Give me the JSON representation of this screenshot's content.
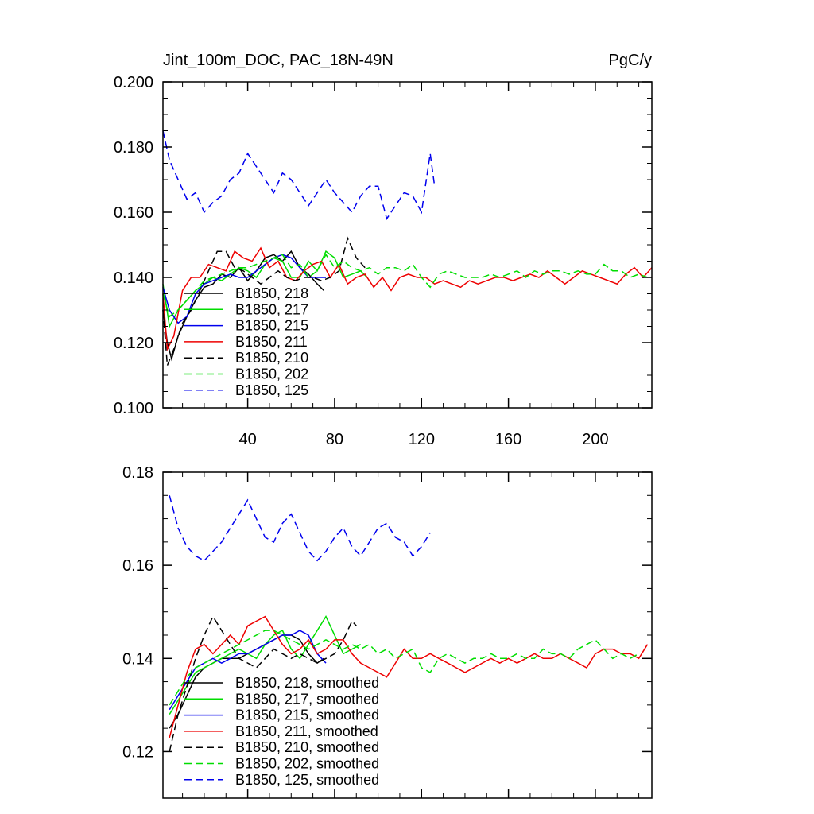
{
  "chart_data": [
    {
      "type": "line",
      "title": "Jint_100m_DOC, PAC_18N-49N",
      "units": "PgC/y",
      "xlim": [
        1,
        226
      ],
      "ylim": [
        0.1,
        0.2
      ],
      "xticks": [
        40,
        80,
        120,
        160,
        200
      ],
      "yticks": [
        0.1,
        0.12,
        0.14,
        0.16,
        0.18,
        0.2
      ],
      "xtick_labels": [
        "40",
        "80",
        "120",
        "160",
        "200"
      ],
      "ytick_labels": [
        "0.100",
        "0.120",
        "0.140",
        "0.160",
        "0.180",
        "0.200"
      ],
      "legend_position": "bottom-left",
      "series": [
        {
          "name": "B1850, 218",
          "color": "#000000",
          "dash": "solid",
          "x": [
            1,
            3,
            5,
            8,
            12,
            16,
            20,
            24,
            28,
            32,
            36,
            40,
            44,
            48,
            52,
            56,
            60,
            64,
            68,
            72,
            75
          ],
          "y": [
            0.13,
            0.12,
            0.115,
            0.122,
            0.128,
            0.133,
            0.137,
            0.138,
            0.141,
            0.14,
            0.143,
            0.139,
            0.142,
            0.146,
            0.147,
            0.145,
            0.148,
            0.143,
            0.141,
            0.138,
            0.136
          ]
        },
        {
          "name": "B1850, 217",
          "color": "#00dd00",
          "dash": "solid",
          "x": [
            1,
            4,
            8,
            12,
            16,
            20,
            24,
            28,
            32,
            36,
            40,
            44,
            48,
            52,
            56,
            60,
            64,
            68,
            72,
            76,
            80,
            84,
            88,
            92,
            95
          ],
          "y": [
            0.138,
            0.125,
            0.13,
            0.133,
            0.136,
            0.138,
            0.14,
            0.139,
            0.141,
            0.143,
            0.142,
            0.14,
            0.144,
            0.146,
            0.145,
            0.14,
            0.14,
            0.145,
            0.142,
            0.148,
            0.146,
            0.14,
            0.141,
            0.142,
            0.14
          ]
        },
        {
          "name": "B1850, 215",
          "color": "#0000ee",
          "dash": "solid",
          "x": [
            1,
            4,
            8,
            12,
            16,
            20,
            24,
            28,
            32,
            36,
            40,
            44,
            48,
            52,
            56,
            60,
            64,
            68,
            72,
            76
          ],
          "y": [
            0.137,
            0.13,
            0.126,
            0.128,
            0.135,
            0.138,
            0.139,
            0.14,
            0.141,
            0.14,
            0.14,
            0.142,
            0.144,
            0.146,
            0.147,
            0.146,
            0.143,
            0.14,
            0.14,
            0.14
          ]
        },
        {
          "name": "B1850, 211",
          "color": "#ee0000",
          "dash": "solid",
          "x": [
            1,
            3,
            6,
            10,
            14,
            18,
            22,
            26,
            30,
            34,
            38,
            42,
            46,
            50,
            54,
            58,
            62,
            66,
            70,
            74,
            78,
            82,
            86,
            90,
            94,
            98,
            102,
            106,
            110,
            114,
            118,
            122,
            126,
            130,
            134,
            138,
            142,
            146,
            150,
            154,
            158,
            162,
            166,
            170,
            174,
            178,
            182,
            186,
            190,
            194,
            198,
            202,
            206,
            210,
            214,
            218,
            222,
            226
          ],
          "y": [
            0.135,
            0.118,
            0.122,
            0.136,
            0.14,
            0.14,
            0.144,
            0.143,
            0.142,
            0.148,
            0.146,
            0.145,
            0.149,
            0.143,
            0.145,
            0.14,
            0.139,
            0.142,
            0.144,
            0.145,
            0.14,
            0.144,
            0.138,
            0.14,
            0.141,
            0.137,
            0.14,
            0.136,
            0.14,
            0.141,
            0.14,
            0.14,
            0.138,
            0.139,
            0.138,
            0.137,
            0.139,
            0.138,
            0.139,
            0.14,
            0.14,
            0.139,
            0.14,
            0.141,
            0.14,
            0.142,
            0.14,
            0.138,
            0.14,
            0.142,
            0.141,
            0.14,
            0.139,
            0.138,
            0.141,
            0.143,
            0.14,
            0.143
          ]
        },
        {
          "name": "B1850, 210",
          "color": "#000000",
          "dash": "dash",
          "x": [
            1,
            3,
            6,
            10,
            14,
            18,
            22,
            26,
            30,
            34,
            38,
            42,
            46,
            50,
            54,
            58,
            62,
            66,
            70,
            74,
            78,
            82,
            86,
            90,
            94
          ],
          "y": [
            0.13,
            0.113,
            0.118,
            0.126,
            0.13,
            0.136,
            0.142,
            0.148,
            0.148,
            0.143,
            0.142,
            0.14,
            0.138,
            0.14,
            0.142,
            0.14,
            0.139,
            0.14,
            0.14,
            0.139,
            0.14,
            0.142,
            0.152,
            0.146,
            0.143
          ]
        },
        {
          "name": "B1850, 202",
          "color": "#00dd00",
          "dash": "dash",
          "x": [
            1,
            4,
            8,
            12,
            16,
            20,
            24,
            28,
            32,
            36,
            40,
            44,
            48,
            52,
            56,
            60,
            64,
            68,
            72,
            76,
            80,
            84,
            88,
            92,
            96,
            100,
            104,
            108,
            112,
            116,
            120,
            124,
            128,
            132,
            136,
            140,
            144,
            148,
            152,
            156,
            160,
            164,
            168,
            172,
            176,
            180,
            184,
            188,
            192,
            196,
            200,
            204,
            208,
            212,
            216,
            220,
            224
          ],
          "y": [
            0.135,
            0.128,
            0.13,
            0.133,
            0.136,
            0.139,
            0.14,
            0.141,
            0.142,
            0.143,
            0.143,
            0.144,
            0.145,
            0.146,
            0.147,
            0.143,
            0.144,
            0.14,
            0.142,
            0.147,
            0.143,
            0.145,
            0.143,
            0.142,
            0.143,
            0.141,
            0.143,
            0.143,
            0.142,
            0.144,
            0.14,
            0.137,
            0.141,
            0.142,
            0.141,
            0.14,
            0.14,
            0.14,
            0.141,
            0.14,
            0.141,
            0.142,
            0.14,
            0.142,
            0.141,
            0.142,
            0.142,
            0.141,
            0.142,
            0.141,
            0.141,
            0.144,
            0.142,
            0.142,
            0.14,
            0.141,
            0.14
          ]
        },
        {
          "name": "B1850, 125",
          "color": "#0000ee",
          "dash": "dash",
          "x": [
            1,
            4,
            8,
            12,
            16,
            20,
            24,
            28,
            32,
            36,
            40,
            44,
            48,
            52,
            56,
            60,
            64,
            68,
            72,
            76,
            80,
            84,
            88,
            92,
            96,
            100,
            104,
            108,
            112,
            116,
            120,
            124,
            126
          ],
          "y": [
            0.185,
            0.176,
            0.17,
            0.164,
            0.166,
            0.16,
            0.163,
            0.165,
            0.17,
            0.172,
            0.178,
            0.174,
            0.17,
            0.166,
            0.172,
            0.17,
            0.166,
            0.162,
            0.166,
            0.17,
            0.166,
            0.163,
            0.16,
            0.165,
            0.168,
            0.168,
            0.158,
            0.162,
            0.166,
            0.165,
            0.16,
            0.178,
            0.168
          ]
        }
      ]
    },
    {
      "type": "line",
      "xlim": [
        1,
        226
      ],
      "ylim": [
        0.11,
        0.18
      ],
      "yticks": [
        0.12,
        0.14,
        0.16,
        0.18
      ],
      "ytick_labels": [
        "0.12",
        "0.14",
        "0.16",
        "0.18"
      ],
      "legend_position": "bottom-left",
      "series": [
        {
          "name": "B1850, 218, smoothed",
          "color": "#000000",
          "dash": "solid",
          "x": [
            4,
            8,
            12,
            16,
            20,
            24,
            28,
            32,
            36,
            40,
            44,
            48,
            52,
            56,
            60,
            64,
            68,
            72,
            75
          ],
          "y": [
            0.125,
            0.128,
            0.132,
            0.136,
            0.138,
            0.139,
            0.14,
            0.14,
            0.14,
            0.141,
            0.142,
            0.143,
            0.144,
            0.145,
            0.145,
            0.144,
            0.141,
            0.139,
            0.14
          ]
        },
        {
          "name": "B1850, 217, smoothed",
          "color": "#00dd00",
          "dash": "solid",
          "x": [
            4,
            8,
            12,
            16,
            20,
            24,
            28,
            32,
            36,
            40,
            44,
            48,
            52,
            56,
            60,
            64,
            68,
            72,
            76,
            80,
            84,
            88,
            92
          ],
          "y": [
            0.128,
            0.131,
            0.134,
            0.137,
            0.138,
            0.139,
            0.14,
            0.141,
            0.142,
            0.141,
            0.14,
            0.143,
            0.145,
            0.146,
            0.142,
            0.14,
            0.143,
            0.146,
            0.149,
            0.145,
            0.141,
            0.142,
            0.143
          ]
        },
        {
          "name": "B1850, 215, smoothed",
          "color": "#0000ee",
          "dash": "solid",
          "x": [
            4,
            8,
            12,
            16,
            20,
            24,
            28,
            32,
            36,
            40,
            44,
            48,
            52,
            56,
            60,
            64,
            68,
            72,
            76
          ],
          "y": [
            0.129,
            0.132,
            0.135,
            0.138,
            0.139,
            0.14,
            0.139,
            0.14,
            0.141,
            0.141,
            0.142,
            0.143,
            0.144,
            0.145,
            0.145,
            0.146,
            0.145,
            0.141,
            0.139
          ]
        },
        {
          "name": "B1850, 211, smoothed",
          "color": "#ee0000",
          "dash": "solid",
          "x": [
            4,
            8,
            12,
            16,
            20,
            24,
            28,
            32,
            36,
            40,
            44,
            48,
            52,
            56,
            60,
            64,
            68,
            72,
            76,
            80,
            84,
            88,
            92,
            96,
            100,
            104,
            108,
            112,
            116,
            120,
            124,
            128,
            132,
            136,
            140,
            144,
            148,
            152,
            156,
            160,
            164,
            168,
            172,
            176,
            180,
            184,
            188,
            192,
            196,
            200,
            204,
            208,
            212,
            216,
            220,
            224
          ],
          "y": [
            0.123,
            0.13,
            0.137,
            0.142,
            0.143,
            0.141,
            0.143,
            0.145,
            0.143,
            0.147,
            0.148,
            0.149,
            0.146,
            0.143,
            0.141,
            0.142,
            0.144,
            0.141,
            0.142,
            0.144,
            0.144,
            0.141,
            0.139,
            0.138,
            0.137,
            0.136,
            0.139,
            0.142,
            0.14,
            0.14,
            0.141,
            0.14,
            0.139,
            0.138,
            0.137,
            0.138,
            0.139,
            0.14,
            0.139,
            0.14,
            0.139,
            0.14,
            0.141,
            0.14,
            0.14,
            0.141,
            0.14,
            0.139,
            0.138,
            0.141,
            0.142,
            0.142,
            0.141,
            0.141,
            0.14,
            0.143
          ]
        },
        {
          "name": "B1850, 210, smoothed",
          "color": "#000000",
          "dash": "dash",
          "x": [
            4,
            8,
            12,
            16,
            20,
            24,
            28,
            32,
            36,
            40,
            44,
            48,
            52,
            56,
            60,
            64,
            68,
            72,
            76,
            80,
            84,
            88,
            90
          ],
          "y": [
            0.12,
            0.128,
            0.134,
            0.14,
            0.145,
            0.149,
            0.146,
            0.143,
            0.14,
            0.139,
            0.138,
            0.14,
            0.142,
            0.141,
            0.14,
            0.141,
            0.14,
            0.139,
            0.14,
            0.141,
            0.144,
            0.148,
            0.147
          ]
        },
        {
          "name": "B1850, 202, smoothed",
          "color": "#00dd00",
          "dash": "dash",
          "x": [
            4,
            8,
            12,
            16,
            20,
            24,
            28,
            32,
            36,
            40,
            44,
            48,
            52,
            56,
            60,
            64,
            68,
            72,
            76,
            80,
            84,
            88,
            92,
            96,
            100,
            104,
            108,
            112,
            116,
            120,
            124,
            128,
            132,
            136,
            140,
            144,
            148,
            152,
            156,
            160,
            164,
            168,
            172,
            176,
            180,
            184,
            188,
            192,
            196,
            200,
            204,
            208,
            212,
            216,
            220
          ],
          "y": [
            0.13,
            0.133,
            0.136,
            0.138,
            0.139,
            0.14,
            0.141,
            0.142,
            0.143,
            0.144,
            0.145,
            0.146,
            0.146,
            0.145,
            0.144,
            0.143,
            0.142,
            0.143,
            0.144,
            0.143,
            0.142,
            0.143,
            0.142,
            0.143,
            0.141,
            0.142,
            0.14,
            0.141,
            0.142,
            0.138,
            0.137,
            0.14,
            0.141,
            0.14,
            0.139,
            0.14,
            0.14,
            0.141,
            0.14,
            0.14,
            0.141,
            0.14,
            0.14,
            0.142,
            0.141,
            0.141,
            0.14,
            0.142,
            0.143,
            0.144,
            0.142,
            0.14,
            0.141,
            0.14,
            0.141
          ]
        },
        {
          "name": "B1850, 125, smoothed",
          "color": "#0000ee",
          "dash": "dash",
          "x": [
            4,
            8,
            12,
            16,
            20,
            24,
            28,
            32,
            36,
            40,
            44,
            48,
            52,
            56,
            60,
            64,
            68,
            72,
            76,
            80,
            84,
            88,
            92,
            96,
            100,
            104,
            108,
            112,
            116,
            120,
            124
          ],
          "y": [
            0.175,
            0.168,
            0.164,
            0.162,
            0.161,
            0.163,
            0.165,
            0.168,
            0.171,
            0.174,
            0.17,
            0.166,
            0.165,
            0.169,
            0.171,
            0.167,
            0.163,
            0.161,
            0.163,
            0.166,
            0.168,
            0.164,
            0.162,
            0.165,
            0.168,
            0.169,
            0.166,
            0.165,
            0.162,
            0.164,
            0.167
          ]
        }
      ]
    }
  ]
}
